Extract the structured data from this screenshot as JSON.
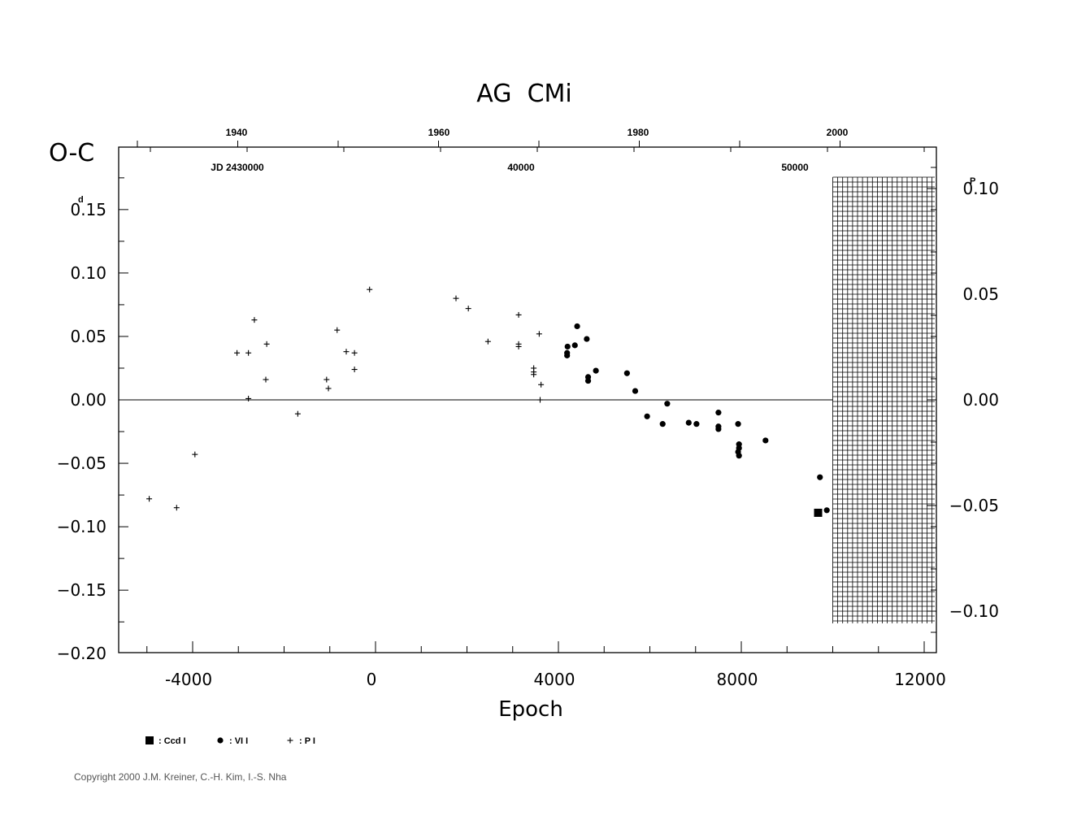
{
  "chart_data": {
    "type": "scatter",
    "title": "AG  CMi",
    "ylabel": "O-C",
    "xlabel": "Epoch",
    "xlim": [
      -5500,
      12000
    ],
    "ylim": [
      -0.2,
      0.2
    ],
    "x_ticks": [
      "-4000",
      "0",
      "4000",
      "8000",
      "12000"
    ],
    "y_ticks": [
      "0.15",
      "0.10",
      "0.05",
      "0.00",
      "−0.05",
      "−0.10",
      "−0.15",
      "−0.20"
    ],
    "y_unit_superscript": "d",
    "right_axis_ticks": [
      "0.10",
      "0.05",
      "0.00",
      "−0.05",
      "−0.10"
    ],
    "right_unit_superscript": "P",
    "top_year_ticks": [
      "1940",
      "1960",
      "1980",
      "2000"
    ],
    "top_jd_labels": [
      "JD 2430000",
      "40000",
      "50000"
    ],
    "series": [
      {
        "name": ": Ccd I",
        "marker": "square",
        "points": [
          [
            9680,
            -0.089
          ]
        ]
      },
      {
        "name": ": VI I",
        "marker": "circle",
        "points": [
          [
            4410,
            0.058
          ],
          [
            4360,
            0.043
          ],
          [
            4200,
            0.042
          ],
          [
            4190,
            0.037
          ],
          [
            4190,
            0.035
          ],
          [
            4620,
            0.048
          ],
          [
            4650,
            0.018
          ],
          [
            4650,
            0.015
          ],
          [
            4820,
            0.023
          ],
          [
            5500,
            0.021
          ],
          [
            5680,
            0.007
          ],
          [
            5940,
            -0.013
          ],
          [
            6280,
            -0.019
          ],
          [
            6380,
            -0.003
          ],
          [
            6850,
            -0.018
          ],
          [
            7020,
            -0.019
          ],
          [
            7500,
            -0.01
          ],
          [
            7500,
            -0.021
          ],
          [
            7500,
            -0.023
          ],
          [
            7930,
            -0.019
          ],
          [
            7950,
            -0.035
          ],
          [
            7950,
            -0.038
          ],
          [
            7930,
            -0.041
          ],
          [
            7950,
            -0.044
          ],
          [
            8530,
            -0.032
          ],
          [
            9720,
            -0.061
          ],
          [
            9870,
            -0.087
          ]
        ]
      },
      {
        "name": ": P I",
        "marker": "plus",
        "points": [
          [
            -4950,
            -0.078
          ],
          [
            -4350,
            -0.085
          ],
          [
            -3950,
            -0.043
          ],
          [
            -3030,
            0.037
          ],
          [
            -2780,
            0.037
          ],
          [
            -2780,
            0.001
          ],
          [
            -2650,
            0.063
          ],
          [
            -2380,
            0.044
          ],
          [
            -2400,
            0.016
          ],
          [
            -1700,
            -0.011
          ],
          [
            -1070,
            0.016
          ],
          [
            -1030,
            0.009
          ],
          [
            -840,
            0.055
          ],
          [
            -640,
            0.038
          ],
          [
            -460,
            0.037
          ],
          [
            -460,
            0.024
          ],
          [
            -130,
            0.087
          ],
          [
            1760,
            0.08
          ],
          [
            2030,
            0.072
          ],
          [
            2460,
            0.046
          ],
          [
            3130,
            0.067
          ],
          [
            3130,
            0.044
          ],
          [
            3130,
            0.042
          ],
          [
            3460,
            0.025
          ],
          [
            3460,
            0.022
          ],
          [
            3460,
            0.02
          ],
          [
            3580,
            0.052
          ],
          [
            3620,
            0.012
          ],
          [
            3600,
            0.0
          ]
        ]
      }
    ]
  },
  "copyright": "Copyright 2000 J.M. Kreiner, C.-H. Kim, I.-S. Nha",
  "colors": {
    "ink": "#000000",
    "copyright": "#555555"
  }
}
